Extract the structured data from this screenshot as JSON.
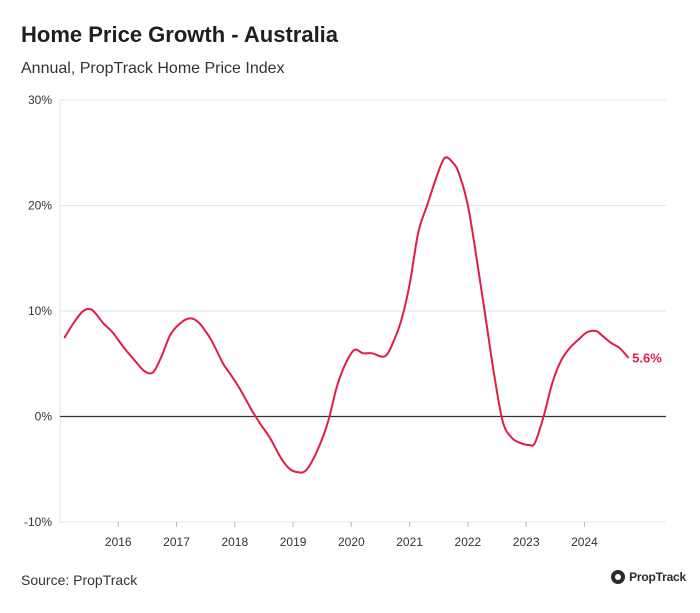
{
  "header": {
    "title": "Home Price Growth - Australia",
    "subtitle": "Annual, PropTrack Home Price Index"
  },
  "footer": {
    "source": "Source: PropTrack",
    "logo_text": "PropTrack"
  },
  "colors": {
    "line": "#e01e44",
    "grid": "#e6e6e6",
    "zero_line": "#333333"
  },
  "chart_data": {
    "type": "line",
    "title": "Home Price Growth - Australia",
    "subtitle": "Annual, PropTrack Home Price Index",
    "xlabel": "",
    "ylabel": "",
    "x_ticks": [
      2016,
      2017,
      2018,
      2019,
      2020,
      2021,
      2022,
      2023,
      2024
    ],
    "x_range": [
      2015.0,
      2025.4
    ],
    "ylim": [
      -10,
      30
    ],
    "y_ticks": [
      -10,
      0,
      10,
      20,
      30
    ],
    "y_tick_labels": [
      "-10%",
      "0%",
      "10%",
      "20%",
      "30%"
    ],
    "grid": "horizontal",
    "end_label": "5.6%",
    "series": [
      {
        "x": [
          2015.08,
          2015.25,
          2015.4,
          2015.55,
          2015.75,
          2015.9,
          2016.1,
          2016.3,
          2016.45,
          2016.6,
          2016.75,
          2016.9,
          2017.1,
          2017.25,
          2017.4,
          2017.6,
          2017.8,
          2017.95,
          2018.1,
          2018.3,
          2018.45,
          2018.6,
          2018.8,
          2018.95,
          2019.1,
          2019.2,
          2019.3,
          2019.45,
          2019.6,
          2019.75,
          2019.9,
          2020.05,
          2020.2,
          2020.35,
          2020.5,
          2020.6,
          2020.7,
          2020.85,
          2021.0,
          2021.15,
          2021.3,
          2021.45,
          2021.6,
          2021.75,
          2021.85,
          2022.0,
          2022.15,
          2022.3,
          2022.45,
          2022.6,
          2022.75,
          2022.9,
          2023.05,
          2023.15,
          2023.3,
          2023.45,
          2023.6,
          2023.75,
          2023.9,
          2024.05,
          2024.2,
          2024.3,
          2024.45,
          2024.6,
          2024.75
        ],
        "y": [
          7.5,
          9.0,
          10.0,
          10.1,
          8.8,
          8.0,
          6.5,
          5.2,
          4.3,
          4.2,
          5.8,
          7.8,
          9.0,
          9.3,
          8.8,
          7.2,
          5.0,
          3.8,
          2.5,
          0.5,
          -0.8,
          -2.0,
          -4.0,
          -5.0,
          -5.3,
          -5.2,
          -4.5,
          -2.8,
          -0.5,
          2.8,
          5.0,
          6.3,
          6.0,
          6.0,
          5.7,
          5.8,
          6.8,
          9.0,
          12.5,
          17.5,
          20.0,
          22.5,
          24.5,
          24.0,
          23.0,
          20.0,
          15.0,
          9.5,
          4.0,
          -0.5,
          -2.0,
          -2.5,
          -2.7,
          -2.5,
          0.0,
          3.2,
          5.3,
          6.5,
          7.3,
          8.0,
          8.1,
          7.7,
          7.0,
          6.5,
          5.6
        ]
      }
    ]
  }
}
